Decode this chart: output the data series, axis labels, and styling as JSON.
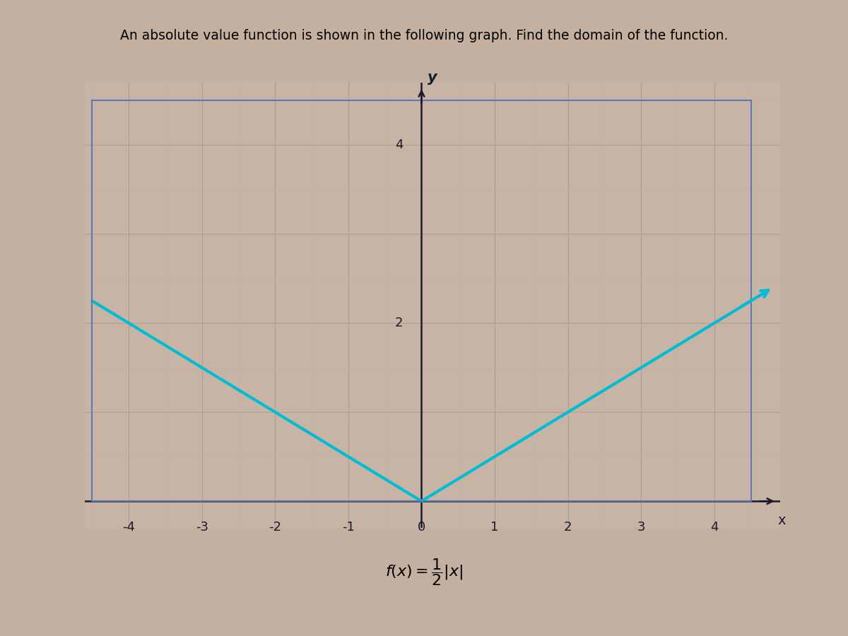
{
  "title": "An absolute value function is shown in the following graph. Find the domain of the function.",
  "title_fontsize": 13.5,
  "xlabel": "x",
  "ylabel": "y",
  "xlim": [
    -4.6,
    4.9
  ],
  "ylim": [
    -0.3,
    4.7
  ],
  "plot_xlim": [
    -4.5,
    4.5
  ],
  "plot_ylim": [
    0.0,
    4.5
  ],
  "xticks": [
    -4,
    -3,
    -2,
    -1,
    0,
    1,
    2,
    3,
    4
  ],
  "yticks": [
    2,
    4
  ],
  "grid_major_color": "#b09898",
  "grid_minor_color": "#c4aaa0",
  "bg_color": "#cdb8a8",
  "plot_bg_color": "#c8b4a4",
  "line_color": "#00bcd4",
  "line_width": 3.0,
  "axis_color": "#1a1a2e",
  "tick_label_color": "#1a1a2e",
  "tick_fontsize": 13,
  "figure_bg": "#c4b0a0",
  "formula_fontsize": 16,
  "box_color": "#5a7ab0",
  "x_range_left": -4.5,
  "x_range_right": 4.5
}
